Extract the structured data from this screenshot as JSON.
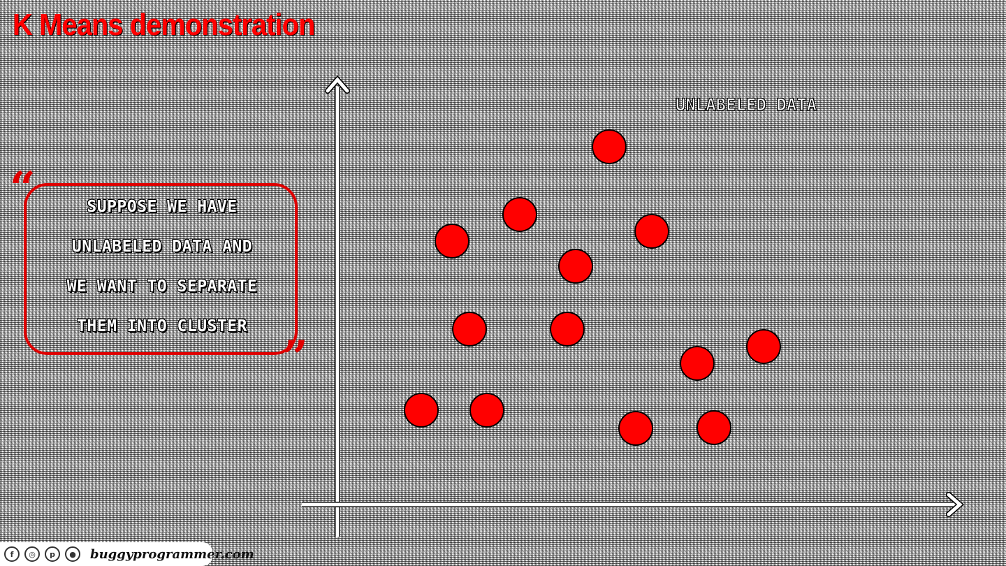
{
  "title": "K Means demonstration",
  "quote": {
    "lines": [
      "SUPPOSE WE HAVE",
      "UNLABELED DATA AND",
      "WE WANT TO SEPARATE",
      "THEM INTO CLUSTER"
    ]
  },
  "chart_label": "UNLABELED DATA",
  "footer": {
    "site": "buggyprogrammer.com",
    "icons": [
      "facebook-icon",
      "instagram-icon",
      "pinterest-icon",
      "github-icon"
    ]
  },
  "colors": {
    "accent": "#ff0000",
    "point_fill": "#ff0000",
    "point_stroke": "#000000",
    "axis": "#ffffff"
  },
  "chart_data": {
    "type": "scatter",
    "title": "",
    "xlabel": "",
    "ylabel": "",
    "series": [
      {
        "points": [
          [
            872,
            210
          ],
          [
            744,
            307
          ],
          [
            647,
            345
          ],
          [
            933,
            331
          ],
          [
            824,
            381
          ],
          [
            672,
            471
          ],
          [
            812,
            471
          ],
          [
            1093,
            496
          ],
          [
            998,
            520
          ],
          [
            603,
            587
          ],
          [
            697,
            587
          ],
          [
            910,
            613
          ],
          [
            1022,
            612
          ]
        ]
      }
    ]
  }
}
